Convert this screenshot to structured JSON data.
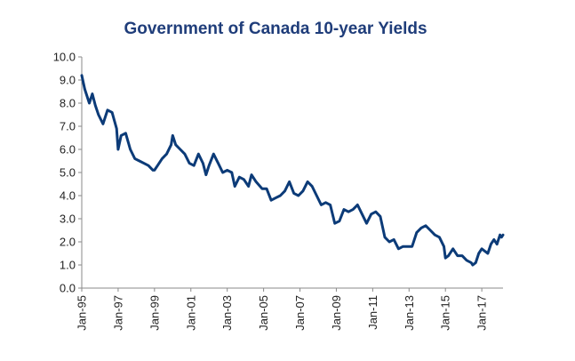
{
  "chart_data": {
    "type": "line",
    "title": "Government of Canada 10-year Yields",
    "xlabel": "",
    "ylabel": "",
    "x_ticks": [
      "Jan-95",
      "Jan-97",
      "Jan-99",
      "Jan-01",
      "Jan-03",
      "Jan-05",
      "Jan-07",
      "Jan-09",
      "Jan-11",
      "Jan-13",
      "Jan-15",
      "Jan-17"
    ],
    "y_ticks": [
      "0.0",
      "1.0",
      "2.0",
      "3.0",
      "4.0",
      "5.0",
      "6.0",
      "7.0",
      "8.0",
      "9.0",
      "10.0"
    ],
    "ylim": [
      0,
      10
    ],
    "xlim": [
      "1995-01",
      "2018-03"
    ],
    "grid": false,
    "legend": "none",
    "line_color": "#0c3b78",
    "series": [
      {
        "values": [
          [
            "1995-01",
            9.2
          ],
          [
            "1995-03",
            8.6
          ],
          [
            "1995-06",
            8.0
          ],
          [
            "1995-08",
            8.4
          ],
          [
            "1995-10",
            7.9
          ],
          [
            "1995-12",
            7.5
          ],
          [
            "1996-03",
            7.1
          ],
          [
            "1996-06",
            7.7
          ],
          [
            "1996-09",
            7.6
          ],
          [
            "1996-12",
            6.9
          ],
          [
            "1997-01",
            6.0
          ],
          [
            "1997-03",
            6.6
          ],
          [
            "1997-06",
            6.7
          ],
          [
            "1997-09",
            6.0
          ],
          [
            "1997-12",
            5.6
          ],
          [
            "1998-03",
            5.5
          ],
          [
            "1998-06",
            5.4
          ],
          [
            "1998-09",
            5.3
          ],
          [
            "1998-12",
            5.1
          ],
          [
            "1999-01",
            5.1
          ],
          [
            "1999-03",
            5.3
          ],
          [
            "1999-06",
            5.6
          ],
          [
            "1999-09",
            5.8
          ],
          [
            "1999-12",
            6.2
          ],
          [
            "2000-01",
            6.6
          ],
          [
            "2000-03",
            6.2
          ],
          [
            "2000-06",
            6.0
          ],
          [
            "2000-09",
            5.8
          ],
          [
            "2000-12",
            5.4
          ],
          [
            "2001-03",
            5.3
          ],
          [
            "2001-06",
            5.8
          ],
          [
            "2001-09",
            5.4
          ],
          [
            "2001-11",
            4.9
          ],
          [
            "2002-01",
            5.3
          ],
          [
            "2002-04",
            5.8
          ],
          [
            "2002-07",
            5.4
          ],
          [
            "2002-10",
            5.0
          ],
          [
            "2003-01",
            5.1
          ],
          [
            "2003-04",
            5.0
          ],
          [
            "2003-06",
            4.4
          ],
          [
            "2003-09",
            4.8
          ],
          [
            "2003-12",
            4.7
          ],
          [
            "2004-03",
            4.4
          ],
          [
            "2004-05",
            4.9
          ],
          [
            "2004-08",
            4.6
          ],
          [
            "2004-12",
            4.3
          ],
          [
            "2005-03",
            4.3
          ],
          [
            "2005-06",
            3.8
          ],
          [
            "2005-09",
            3.9
          ],
          [
            "2005-12",
            4.0
          ],
          [
            "2006-03",
            4.2
          ],
          [
            "2006-06",
            4.6
          ],
          [
            "2006-09",
            4.1
          ],
          [
            "2006-12",
            4.0
          ],
          [
            "2007-03",
            4.2
          ],
          [
            "2007-06",
            4.6
          ],
          [
            "2007-09",
            4.4
          ],
          [
            "2007-12",
            4.0
          ],
          [
            "2008-03",
            3.6
          ],
          [
            "2008-06",
            3.7
          ],
          [
            "2008-09",
            3.6
          ],
          [
            "2008-12",
            2.8
          ],
          [
            "2009-03",
            2.9
          ],
          [
            "2009-06",
            3.4
          ],
          [
            "2009-09",
            3.3
          ],
          [
            "2009-12",
            3.4
          ],
          [
            "2010-03",
            3.6
          ],
          [
            "2010-06",
            3.2
          ],
          [
            "2010-09",
            2.8
          ],
          [
            "2010-12",
            3.2
          ],
          [
            "2011-03",
            3.3
          ],
          [
            "2011-06",
            3.1
          ],
          [
            "2011-09",
            2.2
          ],
          [
            "2011-12",
            2.0
          ],
          [
            "2012-03",
            2.1
          ],
          [
            "2012-06",
            1.7
          ],
          [
            "2012-09",
            1.8
          ],
          [
            "2012-12",
            1.8
          ],
          [
            "2013-03",
            1.8
          ],
          [
            "2013-06",
            2.4
          ],
          [
            "2013-09",
            2.6
          ],
          [
            "2013-12",
            2.7
          ],
          [
            "2014-03",
            2.5
          ],
          [
            "2014-06",
            2.3
          ],
          [
            "2014-09",
            2.2
          ],
          [
            "2014-12",
            1.8
          ],
          [
            "2015-01",
            1.3
          ],
          [
            "2015-03",
            1.4
          ],
          [
            "2015-06",
            1.7
          ],
          [
            "2015-09",
            1.4
          ],
          [
            "2015-12",
            1.4
          ],
          [
            "2016-03",
            1.2
          ],
          [
            "2016-06",
            1.1
          ],
          [
            "2016-07",
            1.0
          ],
          [
            "2016-09",
            1.1
          ],
          [
            "2016-11",
            1.5
          ],
          [
            "2017-01",
            1.7
          ],
          [
            "2017-03",
            1.6
          ],
          [
            "2017-05",
            1.5
          ],
          [
            "2017-07",
            1.9
          ],
          [
            "2017-09",
            2.1
          ],
          [
            "2017-11",
            1.9
          ],
          [
            "2018-01",
            2.3
          ],
          [
            "2018-02",
            2.2
          ],
          [
            "2018-03",
            2.3
          ]
        ]
      }
    ]
  }
}
